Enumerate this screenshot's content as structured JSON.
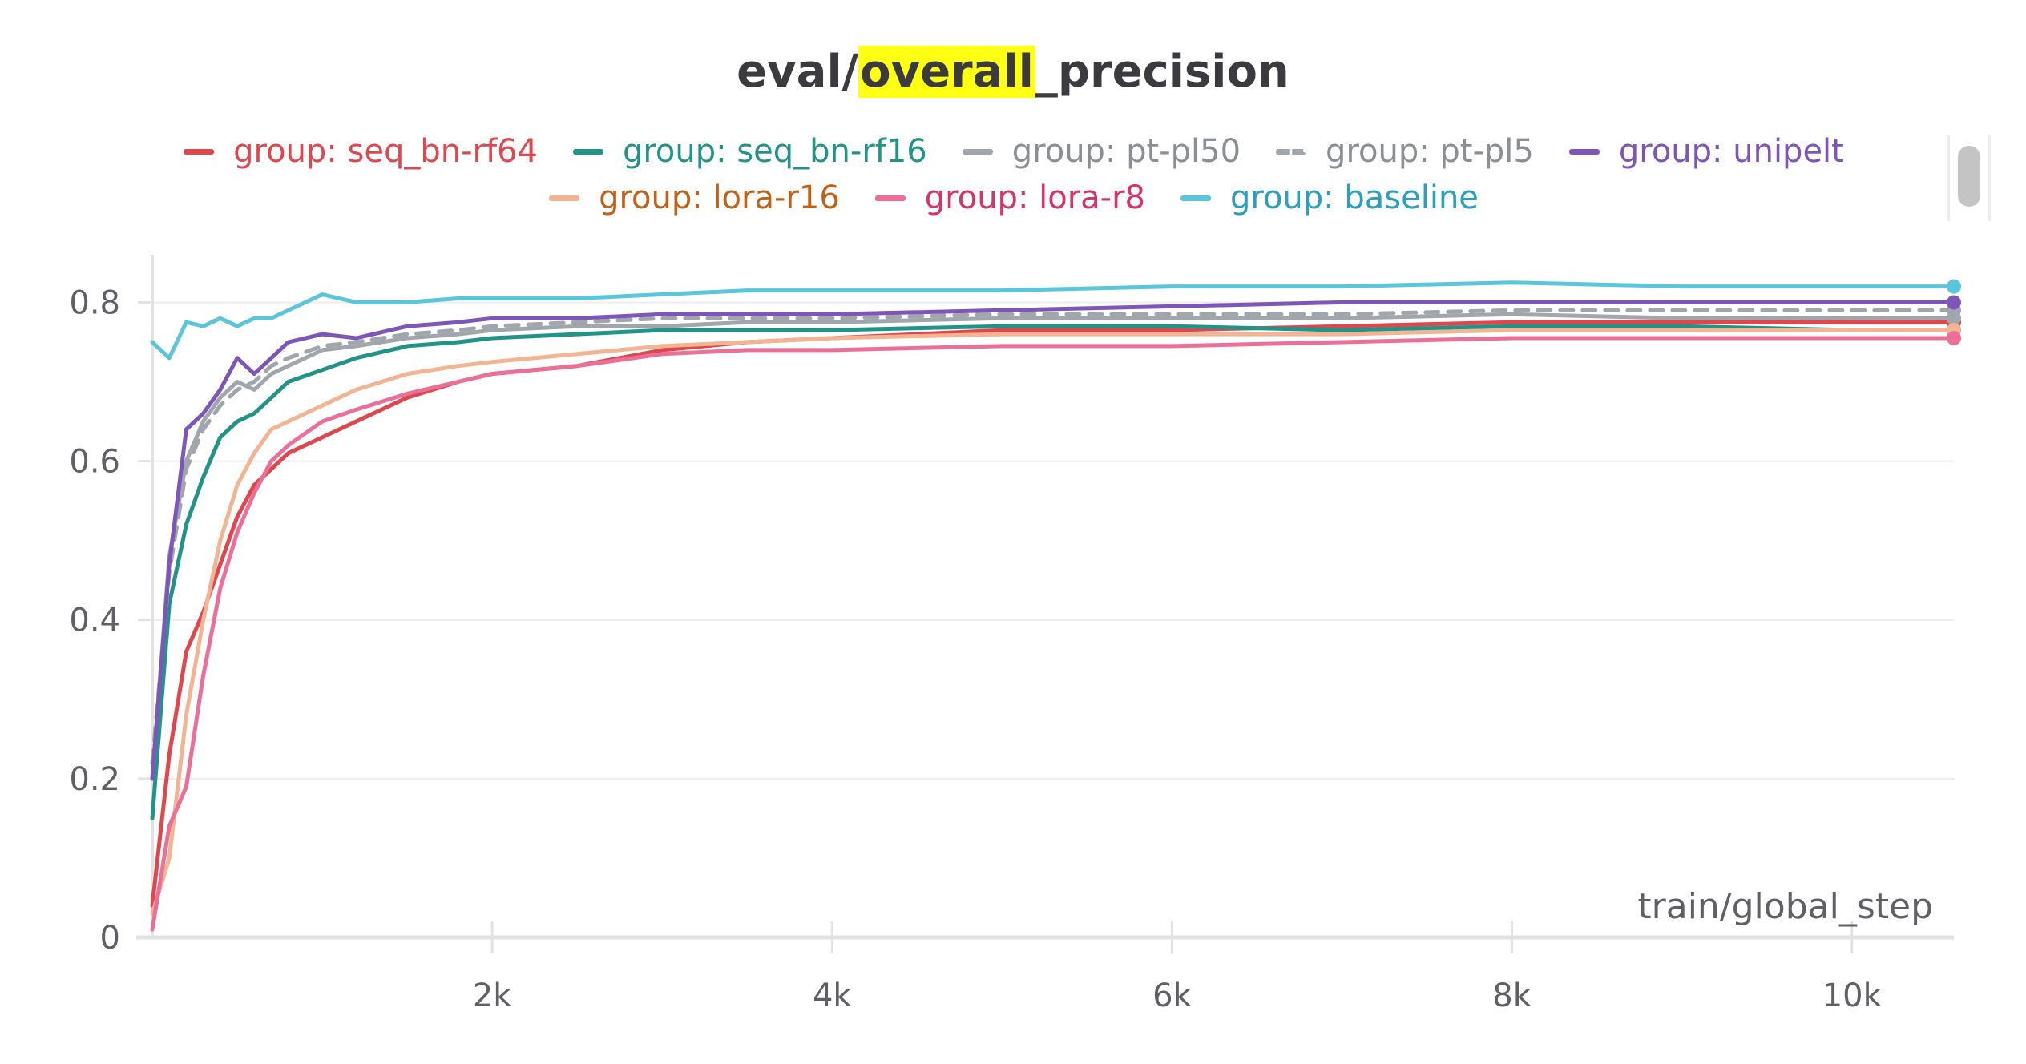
{
  "chart_data": {
    "type": "line",
    "title_parts": [
      "eval/",
      "overall",
      "_precision"
    ],
    "xlabel": "train/global_step",
    "ylabel": "",
    "xlim": [
      0,
      10600
    ],
    "ylim": [
      0,
      0.86
    ],
    "x_ticks": [
      2000,
      4000,
      6000,
      8000,
      10000
    ],
    "x_tick_labels": [
      "2k",
      "4k",
      "6k",
      "8k",
      "10k"
    ],
    "y_ticks": [
      0,
      0.2,
      0.4,
      0.6,
      0.8
    ],
    "y_tick_labels": [
      "0",
      "0.2",
      "0.4",
      "0.6",
      "0.8"
    ],
    "grid": true,
    "legend_placement": "top",
    "series": [
      {
        "name": "group: seq_bn-rf64",
        "color": "#e0474c",
        "dash": false,
        "text_color": "#e0474c",
        "x": [
          0,
          100,
          200,
          300,
          400,
          500,
          600,
          700,
          800,
          1000,
          1200,
          1500,
          1800,
          2000,
          2500,
          3000,
          3500,
          4000,
          5000,
          6000,
          7000,
          8000,
          9000,
          10000,
          10600
        ],
        "values": [
          0.04,
          0.23,
          0.36,
          0.41,
          0.47,
          0.53,
          0.57,
          0.59,
          0.61,
          0.63,
          0.65,
          0.68,
          0.7,
          0.71,
          0.72,
          0.74,
          0.75,
          0.755,
          0.765,
          0.765,
          0.77,
          0.775,
          0.775,
          0.775,
          0.775
        ]
      },
      {
        "name": "group: seq_bn-rf16",
        "color": "#229487",
        "dash": false,
        "text_color": "#229487",
        "x": [
          0,
          100,
          200,
          300,
          400,
          500,
          600,
          700,
          800,
          1000,
          1200,
          1500,
          1800,
          2000,
          2500,
          3000,
          3500,
          4000,
          5000,
          6000,
          7000,
          8000,
          9000,
          10000,
          10600
        ],
        "values": [
          0.15,
          0.42,
          0.52,
          0.58,
          0.63,
          0.65,
          0.66,
          0.68,
          0.7,
          0.715,
          0.73,
          0.745,
          0.75,
          0.755,
          0.76,
          0.765,
          0.765,
          0.765,
          0.77,
          0.77,
          0.765,
          0.77,
          0.77,
          0.765,
          0.765
        ]
      },
      {
        "name": "group: pt-pl50",
        "color": "#a1a6ac",
        "dash": false,
        "text_color": "#8a8f96",
        "x": [
          0,
          100,
          200,
          300,
          400,
          500,
          600,
          700,
          800,
          1000,
          1200,
          1500,
          1800,
          2000,
          2500,
          3000,
          3500,
          4000,
          5000,
          6000,
          7000,
          8000,
          9000,
          10000,
          10600
        ],
        "values": [
          0.2,
          0.48,
          0.6,
          0.65,
          0.68,
          0.7,
          0.69,
          0.71,
          0.72,
          0.74,
          0.745,
          0.755,
          0.76,
          0.765,
          0.77,
          0.77,
          0.775,
          0.775,
          0.78,
          0.78,
          0.78,
          0.785,
          0.78,
          0.78,
          0.78
        ]
      },
      {
        "name": "group: pt-pl5",
        "color": "#a1a6ac",
        "dash": true,
        "text_color": "#8a8f96",
        "x": [
          0,
          100,
          200,
          300,
          400,
          500,
          600,
          700,
          800,
          1000,
          1200,
          1500,
          1800,
          2000,
          2500,
          3000,
          3500,
          4000,
          5000,
          6000,
          7000,
          8000,
          9000,
          10000,
          10600
        ],
        "values": [
          0.22,
          0.46,
          0.59,
          0.64,
          0.67,
          0.69,
          0.7,
          0.72,
          0.73,
          0.745,
          0.75,
          0.76,
          0.765,
          0.77,
          0.775,
          0.78,
          0.78,
          0.78,
          0.785,
          0.785,
          0.785,
          0.79,
          0.79,
          0.79,
          0.79
        ]
      },
      {
        "name": "group: unipelt",
        "color": "#7e55b8",
        "dash": false,
        "text_color": "#7e55b8",
        "x": [
          0,
          100,
          200,
          300,
          400,
          500,
          600,
          700,
          800,
          1000,
          1200,
          1500,
          1800,
          2000,
          2500,
          3000,
          3500,
          4000,
          5000,
          6000,
          7000,
          8000,
          9000,
          10000,
          10600
        ],
        "values": [
          0.2,
          0.47,
          0.64,
          0.66,
          0.69,
          0.73,
          0.71,
          0.73,
          0.75,
          0.76,
          0.755,
          0.77,
          0.775,
          0.78,
          0.78,
          0.785,
          0.785,
          0.785,
          0.79,
          0.795,
          0.8,
          0.8,
          0.8,
          0.8,
          0.8
        ]
      },
      {
        "name": "group: lora-r16",
        "color": "#f2b492",
        "dash": false,
        "text_color": "#c0611a",
        "x": [
          0,
          100,
          200,
          300,
          400,
          500,
          600,
          700,
          800,
          1000,
          1200,
          1500,
          1800,
          2000,
          2500,
          3000,
          3500,
          4000,
          5000,
          6000,
          7000,
          8000,
          9000,
          10000,
          10600
        ],
        "values": [
          0.03,
          0.1,
          0.28,
          0.4,
          0.5,
          0.57,
          0.61,
          0.64,
          0.65,
          0.67,
          0.69,
          0.71,
          0.72,
          0.725,
          0.735,
          0.745,
          0.75,
          0.755,
          0.76,
          0.76,
          0.76,
          0.765,
          0.765,
          0.765,
          0.765
        ]
      },
      {
        "name": "group: lora-r8",
        "color": "#ec6f98",
        "dash": false,
        "text_color": "#d6336c",
        "x": [
          0,
          100,
          200,
          300,
          400,
          500,
          600,
          700,
          800,
          1000,
          1200,
          1500,
          1800,
          2000,
          2500,
          3000,
          3500,
          4000,
          5000,
          6000,
          7000,
          8000,
          9000,
          10000,
          10600
        ],
        "values": [
          0.01,
          0.14,
          0.19,
          0.33,
          0.44,
          0.51,
          0.56,
          0.6,
          0.62,
          0.65,
          0.665,
          0.685,
          0.7,
          0.71,
          0.72,
          0.735,
          0.74,
          0.74,
          0.745,
          0.745,
          0.75,
          0.755,
          0.755,
          0.755,
          0.755
        ]
      },
      {
        "name": "group: baseline",
        "color": "#5bc5db",
        "dash": false,
        "text_color": "#2a9fbf",
        "x": [
          0,
          100,
          200,
          300,
          400,
          500,
          600,
          700,
          800,
          1000,
          1200,
          1500,
          1800,
          2000,
          2500,
          3000,
          3500,
          4000,
          5000,
          6000,
          7000,
          8000,
          9000,
          10000,
          10600
        ],
        "values": [
          0.75,
          0.73,
          0.775,
          0.77,
          0.78,
          0.77,
          0.78,
          0.78,
          0.79,
          0.81,
          0.8,
          0.8,
          0.805,
          0.805,
          0.805,
          0.81,
          0.815,
          0.815,
          0.815,
          0.82,
          0.82,
          0.825,
          0.82,
          0.82,
          0.82
        ]
      }
    ]
  }
}
